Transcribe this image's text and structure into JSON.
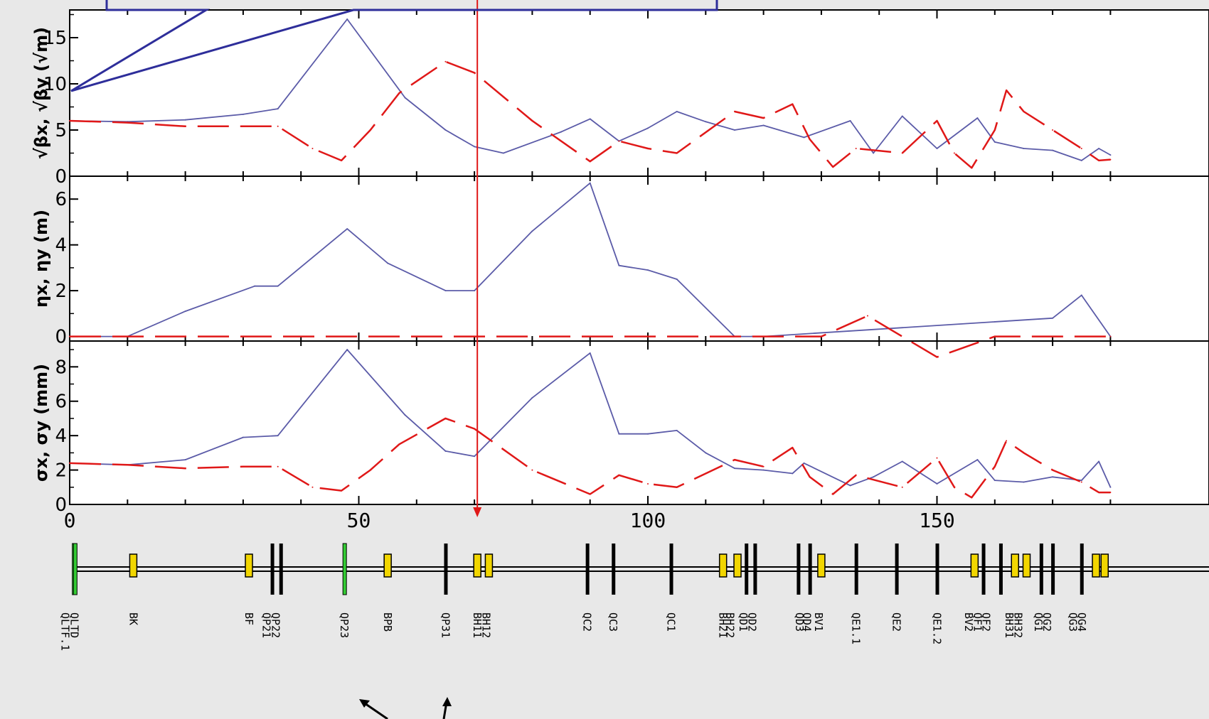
{
  "colors": {
    "window_bg": "#e8e8e8",
    "plot_bg": "#ffffff",
    "series_x": "#5b5ba8",
    "series_y": "#e01818",
    "marker": "#e01818",
    "callout_border": "#2e2e9a",
    "quad_green": "#33cc33",
    "dipole_yellow": "#f2d600"
  },
  "chart_data": [
    {
      "type": "line",
      "panel": "beta",
      "ylabel": "√βx, √βy (√m)",
      "ylim": [
        0,
        18
      ],
      "yticks": [
        0,
        5,
        10,
        15
      ],
      "xlim": [
        0,
        180
      ],
      "grid": false,
      "series": [
        {
          "key": "x",
          "x": [
            0,
            10,
            20,
            30,
            36,
            48,
            58,
            65,
            70,
            75,
            85,
            90,
            95,
            100,
            105,
            110,
            115,
            120,
            127,
            135,
            139,
            144,
            150,
            157,
            160,
            165,
            170,
            175,
            178,
            180
          ],
          "values": [
            6.0,
            5.9,
            6.1,
            6.7,
            7.3,
            17.0,
            8.5,
            5.0,
            3.2,
            2.5,
            4.8,
            6.2,
            3.8,
            5.2,
            7.0,
            5.9,
            5.0,
            5.5,
            4.2,
            6.0,
            2.5,
            6.5,
            3.0,
            6.3,
            3.7,
            3.0,
            2.8,
            1.7,
            3.0,
            2.3
          ]
        },
        {
          "key": "y",
          "x": [
            0,
            10,
            20,
            30,
            36,
            42,
            47,
            52,
            57,
            65,
            70,
            80,
            90,
            95,
            100,
            105,
            115,
            120,
            125,
            128,
            132,
            136,
            144,
            150,
            153,
            156,
            160,
            162,
            165,
            170,
            175,
            178,
            180
          ],
          "values": [
            6.0,
            5.8,
            5.4,
            5.4,
            5.4,
            3.0,
            1.7,
            5.0,
            9.0,
            12.4,
            11.2,
            6.0,
            1.6,
            3.8,
            3.0,
            2.5,
            7.0,
            6.3,
            7.8,
            4.0,
            1.0,
            3.0,
            2.5,
            6.0,
            2.5,
            0.9,
            5.0,
            9.3,
            7.0,
            5.0,
            3.0,
            1.7,
            1.8
          ]
        }
      ]
    },
    {
      "type": "line",
      "panel": "dispersion",
      "ylabel": "ηx, ηy (m)",
      "ylim": [
        -0.2,
        7
      ],
      "yticks": [
        0,
        2,
        4,
        6
      ],
      "xlim": [
        0,
        180
      ],
      "grid": false,
      "series": [
        {
          "key": "x",
          "x": [
            0,
            10,
            20,
            32,
            36,
            48,
            55,
            65,
            70,
            80,
            90,
            95,
            100,
            105,
            115,
            118,
            120,
            170,
            175,
            180
          ],
          "values": [
            0,
            0,
            1.1,
            2.2,
            2.2,
            4.7,
            3.2,
            2.0,
            2.0,
            4.6,
            6.7,
            3.1,
            2.9,
            2.5,
            0,
            0,
            0,
            0.8,
            1.8,
            0
          ]
        },
        {
          "key": "y",
          "x": [
            0,
            10,
            130,
            138,
            150,
            160,
            180
          ],
          "values": [
            0,
            0,
            0,
            0.9,
            -0.9,
            0,
            0
          ]
        }
      ]
    },
    {
      "type": "line",
      "panel": "beam-size",
      "ylabel": "σx, σy (mm)",
      "ylim": [
        0,
        9.5
      ],
      "yticks": [
        0,
        2,
        4,
        6,
        8
      ],
      "xlim": [
        0,
        180
      ],
      "xticks": [
        0,
        50,
        100,
        150
      ],
      "grid": false,
      "series": [
        {
          "key": "x",
          "x": [
            0,
            10,
            20,
            30,
            36,
            48,
            58,
            65,
            70,
            80,
            90,
            95,
            100,
            105,
            110,
            115,
            120,
            125,
            127,
            135,
            139,
            144,
            150,
            157,
            160,
            165,
            170,
            175,
            178,
            180
          ],
          "values": [
            2.4,
            2.3,
            2.6,
            3.9,
            4.0,
            9.0,
            5.2,
            3.1,
            2.8,
            6.2,
            8.8,
            4.1,
            4.1,
            4.3,
            3.0,
            2.1,
            2.0,
            1.8,
            2.4,
            1.1,
            1.6,
            2.5,
            1.2,
            2.6,
            1.4,
            1.3,
            1.6,
            1.4,
            2.5,
            1.0
          ]
        },
        {
          "key": "y",
          "x": [
            0,
            10,
            20,
            30,
            36,
            42,
            47,
            52,
            57,
            65,
            70,
            80,
            90,
            95,
            100,
            105,
            115,
            120,
            125,
            128,
            132,
            136,
            144,
            150,
            153,
            156,
            160,
            162,
            165,
            170,
            175,
            178,
            180
          ],
          "values": [
            2.4,
            2.3,
            2.1,
            2.2,
            2.2,
            1.0,
            0.8,
            2.0,
            3.5,
            5.0,
            4.4,
            2.0,
            0.6,
            1.7,
            1.2,
            1.0,
            2.6,
            2.2,
            3.3,
            1.6,
            0.6,
            1.7,
            1.0,
            2.7,
            1.0,
            0.4,
            2.2,
            3.7,
            3.0,
            2.0,
            1.3,
            0.7,
            0.7
          ]
        }
      ]
    }
  ],
  "marker_line": {
    "s": 70.5
  },
  "lattice": {
    "elements": [
      {
        "s": 0.7,
        "kind": "quad",
        "color": "green"
      },
      {
        "s": 0.9,
        "kind": "quad",
        "color": "green"
      },
      {
        "s": 11,
        "kind": "dipole"
      },
      {
        "s": 31,
        "kind": "dipole"
      },
      {
        "s": 35,
        "kind": "quad"
      },
      {
        "s": 36.5,
        "kind": "quad"
      },
      {
        "s": 47.5,
        "kind": "quad",
        "color": "green"
      },
      {
        "s": 55,
        "kind": "dipole"
      },
      {
        "s": 65,
        "kind": "quad"
      },
      {
        "s": 70.5,
        "kind": "dipole"
      },
      {
        "s": 72.5,
        "kind": "dipole"
      },
      {
        "s": 89.5,
        "kind": "quad"
      },
      {
        "s": 94,
        "kind": "quad"
      },
      {
        "s": 104,
        "kind": "quad"
      },
      {
        "s": 113,
        "kind": "dipole"
      },
      {
        "s": 115.5,
        "kind": "dipole"
      },
      {
        "s": 117,
        "kind": "quad"
      },
      {
        "s": 118.5,
        "kind": "quad"
      },
      {
        "s": 126,
        "kind": "quad"
      },
      {
        "s": 128,
        "kind": "quad"
      },
      {
        "s": 130,
        "kind": "dipole"
      },
      {
        "s": 136,
        "kind": "quad"
      },
      {
        "s": 143,
        "kind": "quad"
      },
      {
        "s": 150,
        "kind": "quad"
      },
      {
        "s": 156.5,
        "kind": "dipole"
      },
      {
        "s": 158,
        "kind": "quad"
      },
      {
        "s": 161,
        "kind": "quad"
      },
      {
        "s": 163.5,
        "kind": "dipole"
      },
      {
        "s": 165.5,
        "kind": "dipole"
      },
      {
        "s": 168,
        "kind": "quad"
      },
      {
        "s": 170,
        "kind": "quad"
      },
      {
        "s": 175,
        "kind": "quad"
      },
      {
        "s": 177.5,
        "kind": "dipole"
      },
      {
        "s": 179,
        "kind": "dipole"
      }
    ],
    "labels": [
      {
        "s": 0.8,
        "text": "QLTD"
      },
      {
        "s": -0.8,
        "text": "QLTF.1"
      },
      {
        "s": 11,
        "text": "BK"
      },
      {
        "s": 31,
        "text": "BF"
      },
      {
        "s": 34,
        "text": "QP21"
      },
      {
        "s": 35.6,
        "text": "QP22"
      },
      {
        "s": 47.5,
        "text": "QP23"
      },
      {
        "s": 55,
        "text": "BPB"
      },
      {
        "s": 65,
        "text": "QP31"
      },
      {
        "s": 70.5,
        "text": "BH11"
      },
      {
        "s": 72,
        "text": "BH12"
      },
      {
        "s": 89.5,
        "text": "QC2"
      },
      {
        "s": 94,
        "text": "QC3"
      },
      {
        "s": 104,
        "text": "QC1"
      },
      {
        "s": 113,
        "text": "BH21"
      },
      {
        "s": 114.2,
        "text": "BH22"
      },
      {
        "s": 116.5,
        "text": "QD1"
      },
      {
        "s": 118,
        "text": "QD2"
      },
      {
        "s": 126.2,
        "text": "QD3"
      },
      {
        "s": 127.5,
        "text": "QD4"
      },
      {
        "s": 129.5,
        "text": "BV1"
      },
      {
        "s": 136,
        "text": "QE1.1"
      },
      {
        "s": 143,
        "text": "QE2"
      },
      {
        "s": 150,
        "text": "QE1.2"
      },
      {
        "s": 155.5,
        "text": "BV2"
      },
      {
        "s": 157,
        "text": "QF1"
      },
      {
        "s": 158.5,
        "text": "QF2"
      },
      {
        "s": 162.5,
        "text": "BH31"
      },
      {
        "s": 164,
        "text": "BH32"
      },
      {
        "s": 167.5,
        "text": "QG1"
      },
      {
        "s": 169,
        "text": "QG2"
      },
      {
        "s": 173.5,
        "text": "QG3"
      },
      {
        "s": 175,
        "text": "QG4"
      }
    ]
  }
}
